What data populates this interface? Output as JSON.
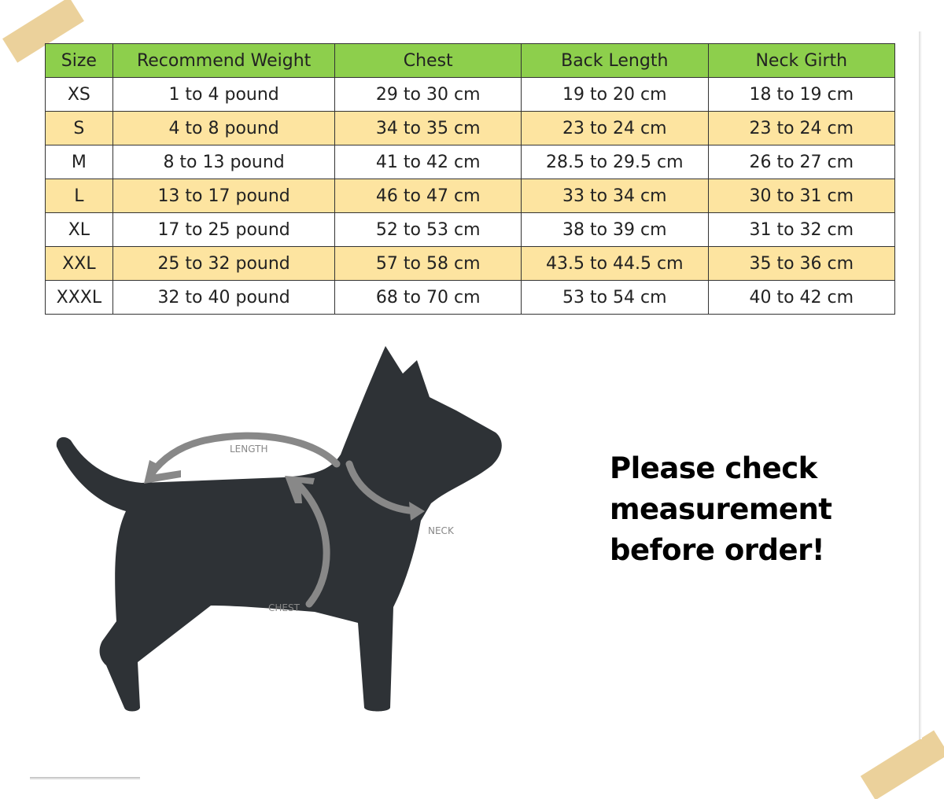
{
  "table": {
    "headers": [
      "Size",
      "Recommend Weight",
      "Chest",
      "Back Length",
      "Neck Girth"
    ],
    "rows": [
      [
        "XS",
        "1 to 4 pound",
        "29 to 30 cm",
        "19 to 20 cm",
        "18 to 19 cm"
      ],
      [
        "S",
        "4 to 8 pound",
        "34 to 35 cm",
        "23 to 24 cm",
        "23 to 24 cm"
      ],
      [
        "M",
        "8 to 13 pound",
        "41 to 42 cm",
        "28.5 to 29.5 cm",
        "26 to 27 cm"
      ],
      [
        "L",
        "13 to 17 pound",
        "46 to 47 cm",
        "33 to 34 cm",
        "30 to 31 cm"
      ],
      [
        "XL",
        "17 to 25 pound",
        "52 to 53 cm",
        "38 to 39 cm",
        "31 to 32 cm"
      ],
      [
        "XXL",
        "25 to 32 pound",
        "57 to 58 cm",
        "43.5 to 44.5 cm",
        "35 to 36 cm"
      ],
      [
        "XXXL",
        "32 to 40 pound",
        "68 to 70 cm",
        "53 to 54 cm",
        "40 to 42 cm"
      ]
    ],
    "colors": {
      "header": "#8dcf4c",
      "alt_row": "#fde4a0",
      "row": "#ffffff"
    }
  },
  "diagram": {
    "length_label": "LENGTH",
    "neck_label": "NECK",
    "chest_label": "CHEST",
    "silhouette_color": "#2e3236",
    "arrow_color": "#888888"
  },
  "note": {
    "line1": "Please check",
    "line2": "measurement",
    "line3": "before order!"
  }
}
